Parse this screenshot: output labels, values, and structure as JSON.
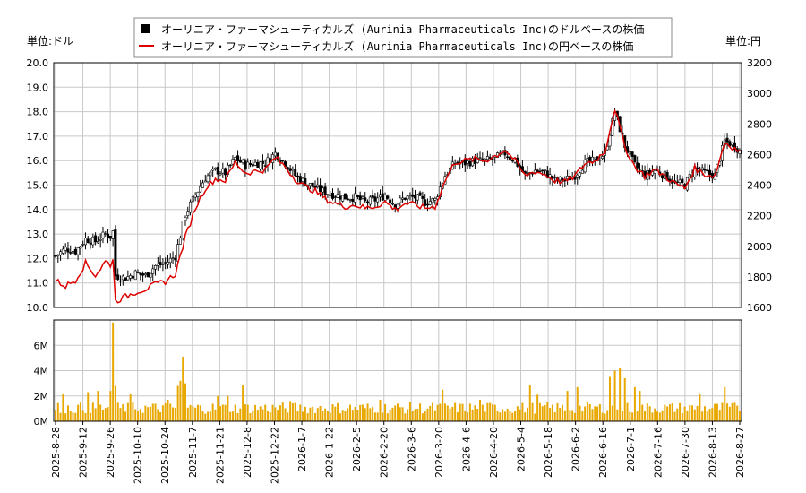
{
  "chart_data": {
    "type": "candlestick+line+volume",
    "legend": [
      {
        "label": "オーリニア・ファーマシューティカルズ (Aurinia Pharmaceuticals Inc)のドルベースの株価",
        "color": "#000000",
        "marker": "square"
      },
      {
        "label": "オーリニア・ファーマシューティカルズ (Aurinia Pharmaceuticals Inc)の円ベースの株価",
        "color": "#dd0000",
        "marker": "line"
      }
    ],
    "y_left_unit": "単位:ドル",
    "y_right_unit": "単位:円",
    "y_left_ticks": [
      "10.0",
      "11.0",
      "12.0",
      "13.0",
      "14.0",
      "15.0",
      "16.0",
      "17.0",
      "18.0",
      "19.0",
      "20.0"
    ],
    "y_right_ticks": [
      "1600",
      "1800",
      "2000",
      "2200",
      "2400",
      "2600",
      "2800",
      "3000",
      "3200"
    ],
    "ylim_left": [
      10,
      20
    ],
    "ylim_right": [
      1600,
      3200
    ],
    "volume_ticks": [
      "0M",
      "2M",
      "4M",
      "6M"
    ],
    "volume_lim": [
      0,
      8000000
    ],
    "x_ticks": [
      "2025-8-28",
      "2025-9-12",
      "2025-9-26",
      "2025-10-10",
      "2025-10-24",
      "2025-11-7",
      "2025-11-21",
      "2025-12-8",
      "2025-12-22",
      "2026-1-7",
      "2026-1-22",
      "2026-2-5",
      "2026-2-20",
      "2026-3-6",
      "2026-3-20",
      "2026-4-6",
      "2026-4-20",
      "2026-5-4",
      "2026-5-18",
      "2026-6-2",
      "2026-6-16",
      "2026-7-1",
      "2026-7-16",
      "2026-7-30",
      "2026-8-13",
      "2026-8-27"
    ],
    "usd_close_keypoints": [
      [
        0,
        12.1
      ],
      [
        4,
        12.4
      ],
      [
        8,
        12.3
      ],
      [
        12,
        12.8
      ],
      [
        16,
        12.7
      ],
      [
        20,
        13.0
      ],
      [
        22,
        12.9
      ],
      [
        23,
        13.1
      ],
      [
        24,
        11.3
      ],
      [
        28,
        11.2
      ],
      [
        32,
        11.4
      ],
      [
        36,
        11.3
      ],
      [
        40,
        11.7
      ],
      [
        44,
        11.8
      ],
      [
        48,
        12.1
      ],
      [
        52,
        13.8
      ],
      [
        56,
        14.6
      ],
      [
        60,
        15.3
      ],
      [
        64,
        15.6
      ],
      [
        68,
        15.5
      ],
      [
        72,
        16.1
      ],
      [
        76,
        15.8
      ],
      [
        80,
        15.9
      ],
      [
        84,
        15.9
      ],
      [
        88,
        16.3
      ],
      [
        92,
        15.9
      ],
      [
        96,
        15.4
      ],
      [
        100,
        15.1
      ],
      [
        104,
        14.9
      ],
      [
        108,
        14.7
      ],
      [
        112,
        14.6
      ],
      [
        116,
        14.5
      ],
      [
        120,
        14.5
      ],
      [
        124,
        14.3
      ],
      [
        128,
        14.4
      ],
      [
        132,
        14.6
      ],
      [
        136,
        14.2
      ],
      [
        140,
        14.5
      ],
      [
        144,
        14.5
      ],
      [
        148,
        14.3
      ],
      [
        152,
        14.4
      ],
      [
        156,
        15.4
      ],
      [
        160,
        15.9
      ],
      [
        164,
        15.9
      ],
      [
        168,
        16.0
      ],
      [
        172,
        16.0
      ],
      [
        176,
        16.1
      ],
      [
        180,
        16.3
      ],
      [
        184,
        16.0
      ],
      [
        188,
        15.4
      ],
      [
        192,
        15.6
      ],
      [
        196,
        15.5
      ],
      [
        200,
        15.2
      ],
      [
        204,
        15.2
      ],
      [
        208,
        15.4
      ],
      [
        212,
        15.9
      ],
      [
        216,
        16.0
      ],
      [
        220,
        16.3
      ],
      [
        224,
        18.0
      ],
      [
        228,
        16.6
      ],
      [
        232,
        15.8
      ],
      [
        236,
        15.4
      ],
      [
        240,
        15.6
      ],
      [
        244,
        15.4
      ],
      [
        248,
        15.1
      ],
      [
        252,
        15.0
      ],
      [
        256,
        15.7
      ],
      [
        260,
        15.5
      ],
      [
        264,
        15.4
      ],
      [
        268,
        16.8
      ],
      [
        272,
        16.6
      ],
      [
        274,
        16.4
      ]
    ],
    "jpy_close_keypoints": [
      [
        0,
        1775
      ],
      [
        4,
        1740
      ],
      [
        8,
        1780
      ],
      [
        12,
        1890
      ],
      [
        16,
        1810
      ],
      [
        20,
        1900
      ],
      [
        22,
        1880
      ],
      [
        23,
        1920
      ],
      [
        24,
        1640
      ],
      [
        28,
        1670
      ],
      [
        32,
        1700
      ],
      [
        36,
        1720
      ],
      [
        40,
        1750
      ],
      [
        44,
        1770
      ],
      [
        48,
        1820
      ],
      [
        52,
        2060
      ],
      [
        56,
        2250
      ],
      [
        60,
        2380
      ],
      [
        64,
        2440
      ],
      [
        68,
        2430
      ],
      [
        72,
        2550
      ],
      [
        76,
        2480
      ],
      [
        80,
        2490
      ],
      [
        84,
        2500
      ],
      [
        88,
        2580
      ],
      [
        92,
        2520
      ],
      [
        96,
        2440
      ],
      [
        100,
        2390
      ],
      [
        104,
        2360
      ],
      [
        108,
        2310
      ],
      [
        112,
        2280
      ],
      [
        116,
        2260
      ],
      [
        120,
        2270
      ],
      [
        124,
        2250
      ],
      [
        128,
        2260
      ],
      [
        132,
        2290
      ],
      [
        136,
        2240
      ],
      [
        140,
        2280
      ],
      [
        144,
        2270
      ],
      [
        148,
        2250
      ],
      [
        152,
        2260
      ],
      [
        156,
        2430
      ],
      [
        160,
        2550
      ],
      [
        164,
        2560
      ],
      [
        168,
        2570
      ],
      [
        172,
        2560
      ],
      [
        176,
        2590
      ],
      [
        180,
        2630
      ],
      [
        184,
        2560
      ],
      [
        188,
        2460
      ],
      [
        192,
        2490
      ],
      [
        196,
        2470
      ],
      [
        200,
        2430
      ],
      [
        204,
        2420
      ],
      [
        208,
        2460
      ],
      [
        212,
        2540
      ],
      [
        216,
        2560
      ],
      [
        220,
        2620
      ],
      [
        224,
        2900
      ],
      [
        228,
        2650
      ],
      [
        232,
        2520
      ],
      [
        236,
        2460
      ],
      [
        240,
        2500
      ],
      [
        244,
        2460
      ],
      [
        248,
        2410
      ],
      [
        252,
        2380
      ],
      [
        256,
        2510
      ],
      [
        260,
        2470
      ],
      [
        264,
        2460
      ],
      [
        268,
        2680
      ],
      [
        272,
        2640
      ],
      [
        274,
        2620
      ]
    ],
    "volume_spikes": [
      [
        3,
        2200000
      ],
      [
        13,
        2300000
      ],
      [
        17,
        2400000
      ],
      [
        22,
        2400000
      ],
      [
        23,
        7800000
      ],
      [
        24,
        2800000
      ],
      [
        30,
        2200000
      ],
      [
        45,
        1700000
      ],
      [
        49,
        2800000
      ],
      [
        50,
        3200000
      ],
      [
        51,
        5100000
      ],
      [
        52,
        3000000
      ],
      [
        65,
        2000000
      ],
      [
        69,
        2000000
      ],
      [
        75,
        2900000
      ],
      [
        94,
        1600000
      ],
      [
        130,
        1700000
      ],
      [
        155,
        2500000
      ],
      [
        170,
        1700000
      ],
      [
        190,
        2900000
      ],
      [
        193,
        2100000
      ],
      [
        205,
        2400000
      ],
      [
        209,
        2700000
      ],
      [
        222,
        3500000
      ],
      [
        224,
        4000000
      ],
      [
        226,
        4200000
      ],
      [
        228,
        3400000
      ],
      [
        232,
        2700000
      ],
      [
        234,
        2400000
      ],
      [
        258,
        2200000
      ],
      [
        268,
        2700000
      ]
    ]
  }
}
